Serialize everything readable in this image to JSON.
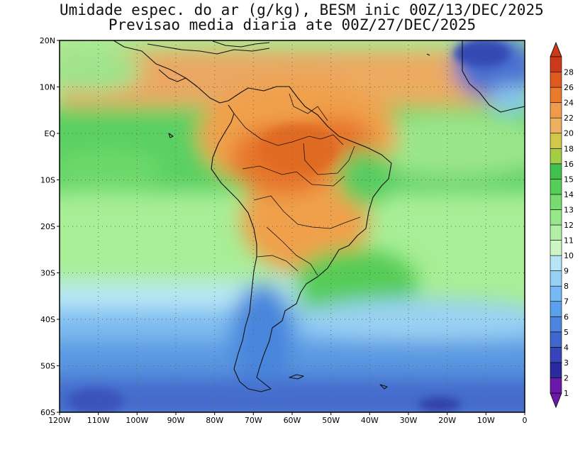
{
  "title": {
    "line1": "Umidade espec. do ar (g/kg), BESM inic 00Z/13/DEC/2025",
    "line2": "Previsao media diaria ate 00Z/27/DEC/2025"
  },
  "map": {
    "lat_labels": [
      "20N",
      "10N",
      "EQ",
      "10S",
      "20S",
      "30S",
      "40S",
      "50S",
      "60S"
    ],
    "lon_labels": [
      "120W",
      "110W",
      "100W",
      "90W",
      "80W",
      "70W",
      "60W",
      "50W",
      "40W",
      "30W",
      "20W",
      "10W",
      "0"
    ]
  },
  "colorbar": {
    "labels": [
      "1",
      "2",
      "3",
      "4",
      "5",
      "6",
      "7",
      "8",
      "9",
      "10",
      "11",
      "12",
      "13",
      "14",
      "15",
      "16",
      "18",
      "20",
      "22",
      "24",
      "26",
      "28"
    ],
    "colors": [
      "#6a1aa8",
      "#2b2b9e",
      "#3646b8",
      "#3f66cc",
      "#4a86dc",
      "#5aa0ec",
      "#76b9f4",
      "#96d2f8",
      "#b6e6f6",
      "#cdf6c2",
      "#b2f0a6",
      "#96e88a",
      "#76dc70",
      "#58ce5a",
      "#40c04c",
      "#a4cc46",
      "#d0c84a",
      "#f0b062",
      "#f09a4c",
      "#ea7a2c",
      "#e05a20",
      "#cc3a1a"
    ]
  }
}
